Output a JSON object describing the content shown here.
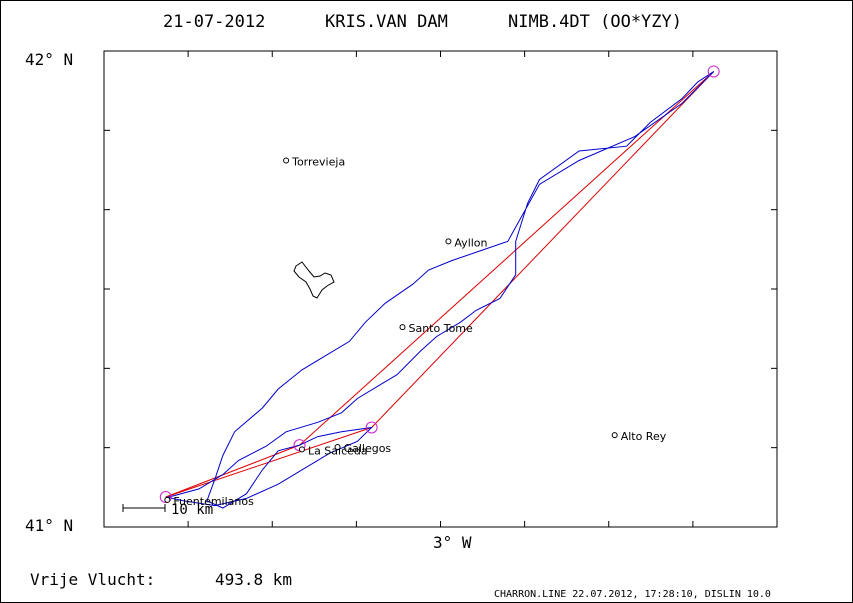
{
  "header": {
    "date": "21-07-2012",
    "pilot": "KRIS.VAN DAM",
    "glider": "NIMB.4DT (OO*YZY)"
  },
  "axes": {
    "lat_top_label": "42° N",
    "lat_bottom_label": "41° N",
    "lon_label": "3° W",
    "lat_range": [
      41.0,
      42.0
    ],
    "lon_range": [
      -3.45,
      -2.6
    ]
  },
  "scale_bar": {
    "label": "10 km"
  },
  "places": [
    {
      "name": "Torrevieja",
      "lon": -3.22,
      "lat": 41.77
    },
    {
      "name": "Ayllon",
      "lon": -3.015,
      "lat": 41.6
    },
    {
      "name": "Santo Tome",
      "lon": -3.073,
      "lat": 41.42
    },
    {
      "name": "Alto Rey",
      "lon": -2.805,
      "lat": 41.193
    },
    {
      "name": "La Salceda",
      "lon": -3.2,
      "lat": 41.163
    },
    {
      "name": "Gallegos",
      "lon": -3.155,
      "lat": 41.168
    },
    {
      "name": "Fuentemilanos",
      "lon": -3.37,
      "lat": 41.057
    }
  ],
  "turnpoints": [
    {
      "lon": -3.372,
      "lat": 41.063
    },
    {
      "lon": -3.203,
      "lat": 41.172
    },
    {
      "lon": -3.112,
      "lat": 41.209
    },
    {
      "lon": -2.68,
      "lat": 41.957
    }
  ],
  "track": [
    [
      -3.37,
      41.062
    ],
    [
      -3.33,
      41.08
    ],
    [
      -3.3,
      41.11
    ],
    [
      -3.28,
      41.14
    ],
    [
      -3.245,
      41.17
    ],
    [
      -3.22,
      41.2
    ],
    [
      -3.18,
      41.22
    ],
    [
      -3.15,
      41.24
    ],
    [
      -3.13,
      41.27
    ],
    [
      -3.1,
      41.3
    ],
    [
      -3.08,
      41.32
    ],
    [
      -3.05,
      41.37
    ],
    [
      -3.03,
      41.4
    ],
    [
      -3.0,
      41.43
    ],
    [
      -2.98,
      41.455
    ],
    [
      -2.95,
      41.48
    ],
    [
      -2.93,
      41.53
    ],
    [
      -2.93,
      41.6
    ],
    [
      -2.915,
      41.68
    ],
    [
      -2.9,
      41.73
    ],
    [
      -2.85,
      41.79
    ],
    [
      -2.79,
      41.8
    ],
    [
      -2.76,
      41.85
    ],
    [
      -2.72,
      41.9
    ],
    [
      -2.7,
      41.935
    ],
    [
      -2.68,
      41.957
    ],
    [
      -2.72,
      41.89
    ],
    [
      -2.78,
      41.82
    ],
    [
      -2.85,
      41.77
    ],
    [
      -2.9,
      41.72
    ],
    [
      -2.93,
      41.63
    ],
    [
      -2.94,
      41.6
    ],
    [
      -2.975,
      41.58
    ],
    [
      -3.01,
      41.56
    ],
    [
      -3.04,
      41.54
    ],
    [
      -3.06,
      41.51
    ],
    [
      -3.095,
      41.47
    ],
    [
      -3.12,
      41.43
    ],
    [
      -3.14,
      41.39
    ],
    [
      -3.17,
      41.36
    ],
    [
      -3.2,
      41.33
    ],
    [
      -3.23,
      41.29
    ],
    [
      -3.25,
      41.25
    ],
    [
      -3.285,
      41.2
    ],
    [
      -3.3,
      41.15
    ],
    [
      -3.31,
      41.1
    ],
    [
      -3.32,
      41.055
    ],
    [
      -3.3,
      41.04
    ],
    [
      -3.27,
      41.07
    ],
    [
      -3.25,
      41.12
    ],
    [
      -3.23,
      41.16
    ],
    [
      -3.203,
      41.172
    ],
    [
      -3.18,
      41.19
    ],
    [
      -3.15,
      41.2
    ],
    [
      -3.112,
      41.209
    ],
    [
      -3.13,
      41.18
    ],
    [
      -3.165,
      41.155
    ],
    [
      -3.2,
      41.12
    ],
    [
      -3.23,
      41.09
    ],
    [
      -3.27,
      41.06
    ],
    [
      -3.31,
      41.045
    ],
    [
      -3.35,
      41.055
    ],
    [
      -3.372,
      41.063
    ]
  ],
  "footer": {
    "distance_label": "Vrije Vlucht:",
    "distance_value": "493.8 km",
    "credit": "CHARRON.LINE 22.07.2012, 17:28:10, DISLIN 10.0"
  },
  "colors": {
    "track": "#0000cc",
    "task": "#dd0000",
    "turnpoint": "#cc22cc",
    "frame": "#000000"
  }
}
